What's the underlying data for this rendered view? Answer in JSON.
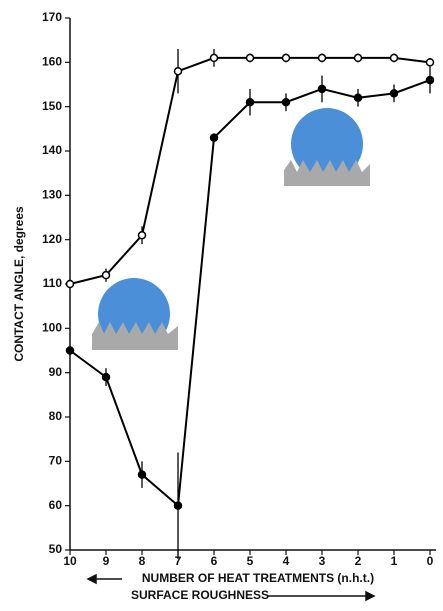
{
  "chart_data": {
    "type": "line",
    "y_label": "CONTACT ANGLE, degrees",
    "x_label": "NUMBER OF HEAT TREATMENTS (n.h.t.)",
    "x_label_2": "SURFACE ROUGHNESS",
    "categories": [
      "10",
      "9",
      "8",
      "7",
      "6",
      "5",
      "4",
      "3",
      "2",
      "1",
      "0"
    ],
    "series": [
      {
        "color": "#000000",
        "marker": "open",
        "values": [
          110,
          112,
          121,
          158,
          161,
          161,
          161,
          161,
          161,
          161,
          160
        ],
        "errors": [
          1,
          1.5,
          2,
          5,
          2,
          1,
          1,
          1,
          1,
          1,
          1
        ]
      },
      {
        "color": "#000000",
        "marker": "filled",
        "values": [
          95,
          89,
          67,
          60,
          143,
          151,
          151,
          154,
          152,
          153,
          156
        ],
        "errors": [
          1,
          2,
          3,
          12,
          1,
          3,
          2,
          3,
          2,
          2,
          3
        ]
      }
    ],
    "ylim": [
      50,
      170
    ],
    "yticks": [
      50,
      60,
      70,
      80,
      90,
      100,
      110,
      120,
      130,
      140,
      150,
      160,
      170
    ],
    "grid": false
  }
}
